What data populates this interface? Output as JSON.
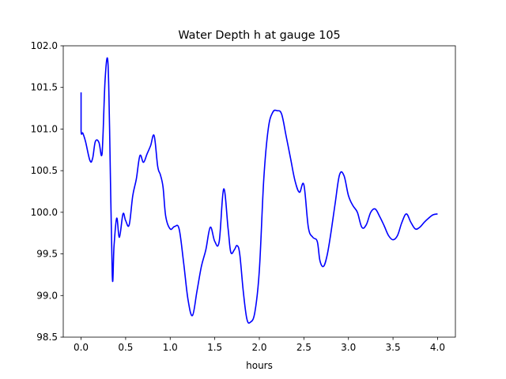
{
  "chart_data": {
    "type": "line",
    "title": "Water Depth h at gauge 105",
    "xlabel": "hours",
    "ylabel": "",
    "xlim": [
      -0.2,
      4.2
    ],
    "ylim": [
      98.5,
      102.0
    ],
    "grid": false,
    "x_ticks": [
      0.0,
      0.5,
      1.0,
      1.5,
      2.0,
      2.5,
      3.0,
      3.5,
      4.0
    ],
    "x_tick_labels": [
      "0.0",
      "0.5",
      "1.0",
      "1.5",
      "2.0",
      "2.5",
      "3.0",
      "3.5",
      "4.0"
    ],
    "y_ticks": [
      98.5,
      99.0,
      99.5,
      100.0,
      100.5,
      101.0,
      101.5,
      102.0
    ],
    "y_tick_labels": [
      "98.5",
      "99.0",
      "99.5",
      "100.0",
      "100.5",
      "101.0",
      "101.5",
      "102.0"
    ],
    "series": [
      {
        "color": "#0000ff",
        "x": [
          0.0,
          0.0,
          0.02,
          0.05,
          0.1,
          0.13,
          0.16,
          0.2,
          0.23,
          0.245,
          0.27,
          0.3,
          0.32,
          0.35,
          0.37,
          0.4,
          0.43,
          0.47,
          0.5,
          0.54,
          0.58,
          0.62,
          0.66,
          0.7,
          0.74,
          0.78,
          0.82,
          0.86,
          0.89,
          0.92,
          0.95,
          1.0,
          1.05,
          1.1,
          1.15,
          1.2,
          1.25,
          1.3,
          1.35,
          1.4,
          1.45,
          1.5,
          1.55,
          1.6,
          1.65,
          1.68,
          1.72,
          1.75,
          1.78,
          1.82,
          1.86,
          1.9,
          1.95,
          2.0,
          2.05,
          2.1,
          2.15,
          2.2,
          2.25,
          2.3,
          2.35,
          2.4,
          2.45,
          2.5,
          2.55,
          2.6,
          2.65,
          2.68,
          2.72,
          2.76,
          2.8,
          2.85,
          2.9,
          2.95,
          3.0,
          3.05,
          3.1,
          3.15,
          3.2,
          3.25,
          3.3,
          3.35,
          3.4,
          3.45,
          3.5,
          3.55,
          3.6,
          3.65,
          3.7,
          3.75,
          3.8,
          3.85,
          3.9,
          3.95,
          4.0
        ],
        "y": [
          101.44,
          100.98,
          100.95,
          100.85,
          100.62,
          100.65,
          100.85,
          100.84,
          100.68,
          100.9,
          101.6,
          101.82,
          101.0,
          99.24,
          99.6,
          99.93,
          99.7,
          99.98,
          99.9,
          99.85,
          100.2,
          100.4,
          100.68,
          100.6,
          100.7,
          100.8,
          100.92,
          100.55,
          100.45,
          100.3,
          99.95,
          99.8,
          99.83,
          99.8,
          99.4,
          98.95,
          98.76,
          99.05,
          99.35,
          99.55,
          99.82,
          99.65,
          99.65,
          100.28,
          99.8,
          99.52,
          99.55,
          99.6,
          99.5,
          99.05,
          98.72,
          98.68,
          98.8,
          99.3,
          100.4,
          101.0,
          101.2,
          101.22,
          101.18,
          100.92,
          100.65,
          100.38,
          100.24,
          100.33,
          99.82,
          99.7,
          99.65,
          99.42,
          99.35,
          99.48,
          99.73,
          100.1,
          100.45,
          100.44,
          100.2,
          100.08,
          100.0,
          99.82,
          99.85,
          100.0,
          100.04,
          99.95,
          99.84,
          99.72,
          99.67,
          99.72,
          99.88,
          99.98,
          99.88,
          99.8,
          99.82,
          99.88,
          99.93,
          99.97,
          99.98
        ]
      }
    ]
  }
}
